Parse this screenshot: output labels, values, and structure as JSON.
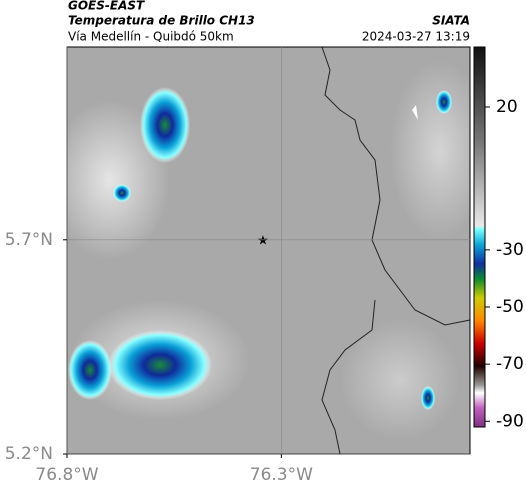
{
  "header": {
    "satellite": "GOES-EAST",
    "product": "Temperatura de Brillo CH13",
    "region": "Vía Medellín - Quibdó 50km",
    "source": "SIATA",
    "timestamp": "2024-03-27 13:19"
  },
  "map": {
    "xlim": [
      -76.8,
      -75.86
    ],
    "ylim": [
      5.2,
      6.15
    ],
    "xticks": [
      {
        "value": -76.8,
        "label": "76.8°W"
      },
      {
        "value": -76.3,
        "label": "76.3°W"
      }
    ],
    "yticks": [
      {
        "value": 5.2,
        "label": "5.2°N"
      },
      {
        "value": 5.7,
        "label": "5.7°N"
      }
    ],
    "grid": true
  },
  "colorbar": {
    "lim": [
      -92,
      41
    ],
    "ticks": [
      20,
      -30,
      -50,
      -70,
      -90
    ]
  }
}
